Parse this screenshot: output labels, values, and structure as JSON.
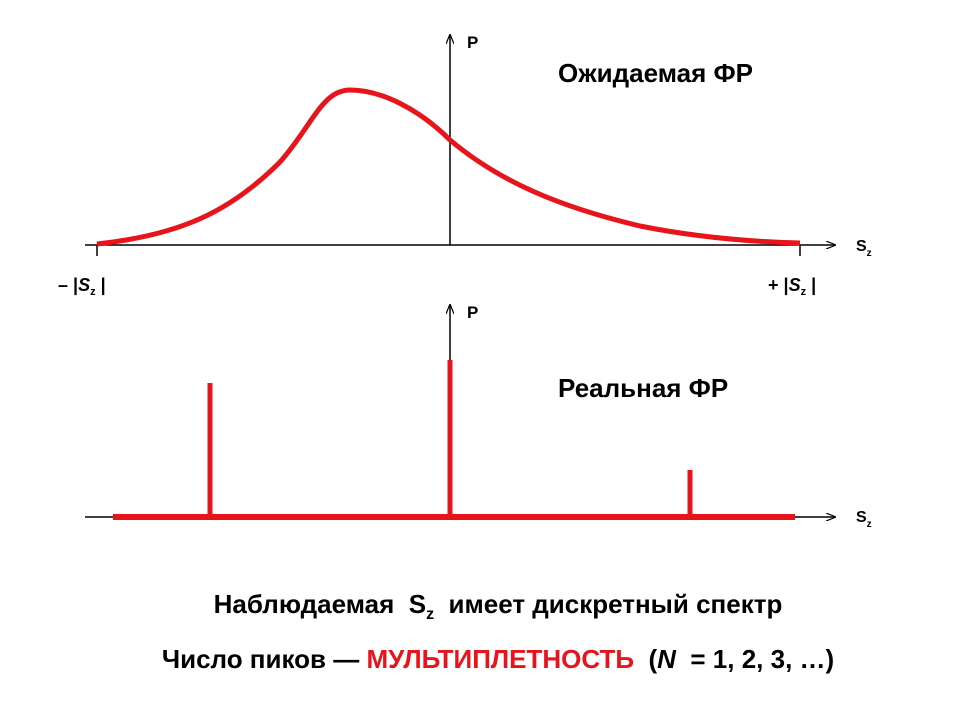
{
  "top": {
    "axis_y_label": "P",
    "title": "Ожидаемая ФР",
    "axis_x_label": {
      "main": "S",
      "sub": "z"
    },
    "left_limit": {
      "prefix": "– |",
      "main": "S",
      "sub": "z",
      "suffix": " |"
    },
    "right_limit": {
      "prefix": "+ |",
      "main": "S",
      "sub": "z",
      "suffix": " |"
    }
  },
  "bottom": {
    "axis_y_label": "P",
    "title": "Реальная ФР",
    "axis_x_label": {
      "main": "S",
      "sub": "z"
    }
  },
  "caption": {
    "line1": {
      "before": "Наблюдаемая  ",
      "main": "S",
      "sub": "z",
      "after": "  имеет дискретный спектр"
    },
    "line2": {
      "before": "Число пиков — ",
      "highlight": "МУЛЬТИПЛЕТНОСТЬ",
      "open": "  (",
      "var": "N",
      "after": "  = 1, 2, 3, …)"
    }
  }
}
